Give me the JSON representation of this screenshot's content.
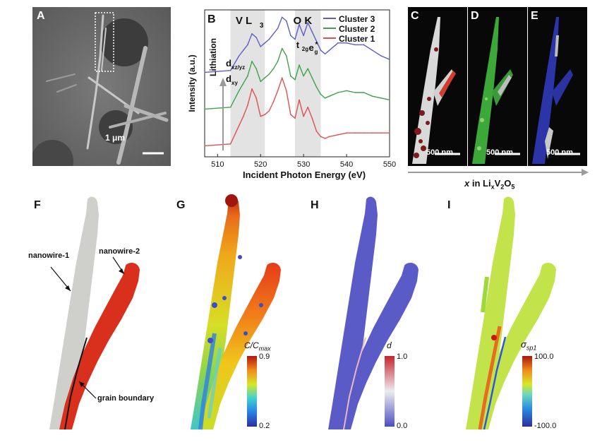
{
  "figure": {
    "panel_A": {
      "letter": "A",
      "scale_bar": "1 μm"
    },
    "panel_B": {
      "letter": "B",
      "region_v": "V L",
      "region_v_sub": "3",
      "region_o": "O K",
      "ylabel": "Intensity (a.u.)",
      "xlabel": "Incident Photon Energy (eV)",
      "arrow_label": "Lithiation",
      "peak_dxzyz_base": "d",
      "peak_dxzyz_sub": "xz/yz",
      "peak_dxy_base": "d",
      "peak_dxy_sub": "xy",
      "peak_t2g_base": "t",
      "peak_t2g_sub": "2g",
      "peak_eg_base": "e",
      "peak_eg_sub": "g",
      "peak_eg_sup": "*"
    },
    "panel_C": {
      "letter": "C",
      "scale_bar": "500 nm"
    },
    "panel_D": {
      "letter": "D",
      "scale_bar": "500 nm"
    },
    "panel_E": {
      "letter": "E",
      "scale_bar": "500 nm"
    },
    "axis_x_in": {
      "x": "x",
      "in": " in Li",
      "sub_x": "x",
      "v": "V",
      "sub_2": "2",
      "o": "O",
      "sub_5": "5"
    },
    "panel_F": {
      "letter": "F",
      "label_nw1": "nanowire-1",
      "label_nw2": "nanowire-2",
      "label_gb": "grain boundary"
    },
    "panel_G": {
      "letter": "G",
      "cb_title_c": "C/C",
      "cb_title_sub": "max",
      "cb_max": "0.9",
      "cb_min": "0.2"
    },
    "panel_H": {
      "letter": "H",
      "cb_title": "d",
      "cb_max": "1.0",
      "cb_min": "0.0"
    },
    "panel_I": {
      "letter": "I",
      "cb_title": "σ",
      "cb_title_sub": "sp1",
      "cb_max": "100.0",
      "cb_min": "-100.0"
    }
  },
  "colors": {
    "cluster3": "#5b5fc7",
    "cluster2": "#3ea34a",
    "cluster1": "#e05050",
    "nanowire1": "#cfcfcb",
    "nanowire2": "#d8301c",
    "h_fill": "#5b5bc8",
    "i_fill": "#c2e34a"
  },
  "chart_data": {
    "type": "line",
    "title": "",
    "xlabel": "Incident Photon Energy (eV)",
    "ylabel": "Intensity (a.u.)",
    "xlim": [
      507,
      550
    ],
    "xticks": [
      510,
      520,
      530,
      540,
      550
    ],
    "grid": false,
    "legend_position": "top-right",
    "shaded_regions": [
      {
        "label": "V L3",
        "x_range": [
          513,
          521
        ]
      },
      {
        "label": "O K",
        "x_range": [
          528,
          534
        ]
      }
    ],
    "series": [
      {
        "name": "Cluster 3",
        "offset": 2.0,
        "x": [
          507,
          513,
          515,
          516,
          517,
          518,
          519,
          520,
          521,
          522,
          523,
          524,
          525,
          526,
          527,
          528,
          529,
          530,
          531,
          532,
          533,
          534,
          535,
          536,
          538,
          540,
          542,
          544,
          546,
          548,
          550
        ],
        "y": [
          0.0,
          0.05,
          0.45,
          0.6,
          0.75,
          1.05,
          0.95,
          0.7,
          0.8,
          0.9,
          1.05,
          1.2,
          1.5,
          1.4,
          1.0,
          0.9,
          1.3,
          1.0,
          1.35,
          1.1,
          0.85,
          0.6,
          0.5,
          0.6,
          0.8,
          0.8,
          0.75,
          0.75,
          0.6,
          0.45,
          0.35
        ]
      },
      {
        "name": "Cluster 2",
        "offset": 1.0,
        "x": [
          507,
          513,
          515,
          516,
          517,
          518,
          519,
          520,
          521,
          522,
          523,
          524,
          525,
          526,
          527,
          528,
          529,
          530,
          531,
          532,
          533,
          534,
          535,
          536,
          538,
          540,
          542,
          544,
          546,
          548,
          550
        ],
        "y": [
          0.0,
          0.05,
          0.5,
          0.7,
          0.9,
          1.3,
          1.1,
          0.75,
          0.85,
          0.95,
          1.1,
          1.3,
          1.65,
          1.45,
          0.9,
          0.8,
          1.2,
          0.9,
          1.1,
          0.85,
          0.6,
          0.4,
          0.3,
          0.35,
          0.45,
          0.5,
          0.45,
          0.45,
          0.35,
          0.3,
          0.25
        ]
      },
      {
        "name": "Cluster 1",
        "offset": 0.0,
        "x": [
          507,
          513,
          515,
          516,
          517,
          518,
          519,
          520,
          521,
          522,
          523,
          524,
          525,
          526,
          527,
          528,
          529,
          530,
          531,
          532,
          533,
          534,
          535,
          536,
          538,
          540,
          542,
          544,
          546,
          548,
          550
        ],
        "y": [
          0.0,
          0.05,
          0.55,
          0.8,
          1.1,
          1.55,
          1.3,
          0.8,
          0.85,
          0.95,
          1.2,
          1.5,
          1.85,
          1.5,
          0.85,
          0.75,
          1.25,
          0.8,
          1.05,
          0.75,
          0.4,
          0.25,
          0.2,
          0.25,
          0.3,
          0.35,
          0.35,
          0.35,
          0.35,
          0.35,
          0.35
        ]
      }
    ]
  }
}
